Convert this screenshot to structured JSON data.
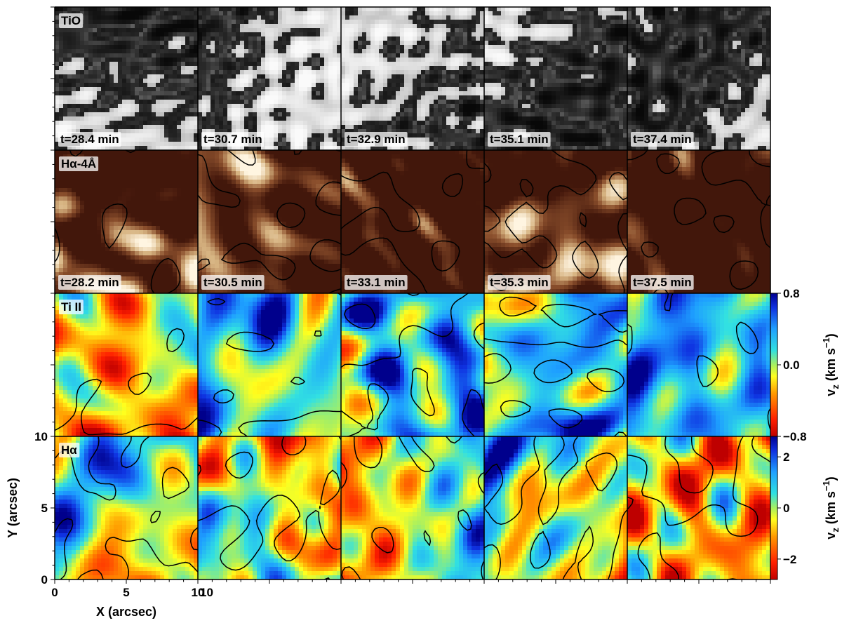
{
  "figure": {
    "columns": 5,
    "rows": [
      {
        "id": "tio",
        "label": "TiO",
        "colormap": "gray",
        "contours": false,
        "times": [
          "t=28.4 min",
          "t=30.7 min",
          "t=32.9 min",
          "t=35.1 min",
          "t=37.4 min"
        ]
      },
      {
        "id": "halpha_wing",
        "label": "Hα-4Å",
        "colormap": "brown",
        "contours": true,
        "times": [
          "t=28.2 min",
          "t=30.5 min",
          "t=33.1 min",
          "t=35.3 min",
          "t=37.5 min"
        ]
      },
      {
        "id": "tiii",
        "label": "Ti II",
        "colormap": "jet",
        "contours": true,
        "times": [],
        "colorbar": {
          "ticks": [
            "0.8",
            "0.0",
            "−0.8"
          ],
          "range": [
            -0.8,
            0.8
          ],
          "label": "v",
          "label_sub": "z",
          "label_unit": " (km s",
          "label_sup": "−1",
          "label_end": ")"
        }
      },
      {
        "id": "halpha",
        "label": "Hα",
        "colormap": "jet",
        "contours": true,
        "times": [],
        "colorbar": {
          "ticks": [
            "2",
            "0",
            "−2"
          ],
          "range": [
            -2.8,
            2.8
          ],
          "label": "v",
          "label_sub": "z",
          "label_unit": " (km s",
          "label_sup": "−1",
          "label_end": ")"
        }
      }
    ],
    "x_axis": {
      "title": "X (arcsec)",
      "ticks": [
        "0",
        "5",
        "10"
      ],
      "extra_tick": "10"
    },
    "y_axis": {
      "title": "Y (arcsec)",
      "ticks": [
        "0",
        "5",
        "10"
      ]
    }
  }
}
